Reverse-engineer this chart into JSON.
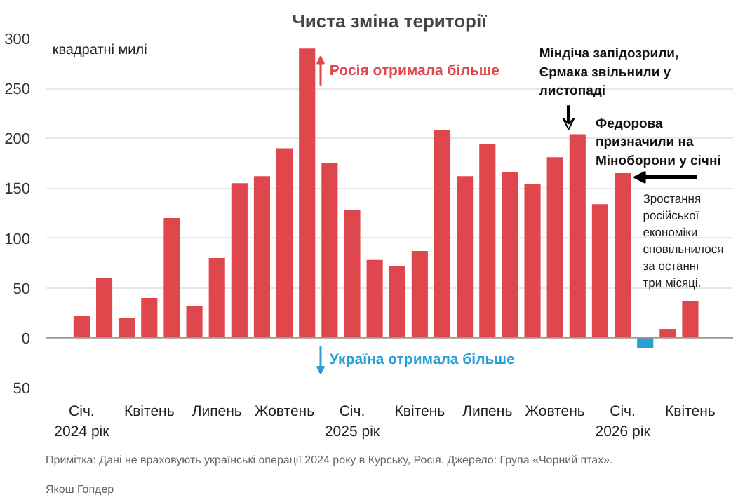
{
  "chart_data": {
    "type": "bar",
    "title": "Чиста зміна території",
    "ylabel": "квадратні милі",
    "categories": [
      "Січ.\n2024 рік",
      null,
      null,
      "Квітень",
      null,
      null,
      "Липень",
      null,
      null,
      "Жовтень",
      null,
      null,
      "Січ.\n2025 рік",
      null,
      null,
      "Квітень",
      null,
      null,
      "Липень",
      null,
      null,
      "Жовтень",
      null,
      null,
      "Січ.\n2026 рік",
      null,
      null,
      "Квітень"
    ],
    "values": [
      22,
      60,
      20,
      40,
      120,
      32,
      80,
      155,
      162,
      190,
      290,
      175,
      128,
      78,
      72,
      87,
      208,
      162,
      194,
      166,
      154,
      181,
      204,
      134,
      165,
      -10,
      9,
      37
    ],
    "colors": [
      "#e0474c",
      "#e0474c",
      "#e0474c",
      "#e0474c",
      "#e0474c",
      "#e0474c",
      "#e0474c",
      "#e0474c",
      "#e0474c",
      "#e0474c",
      "#e0474c",
      "#e0474c",
      "#e0474c",
      "#e0474c",
      "#e0474c",
      "#e0474c",
      "#e0474c",
      "#e0474c",
      "#e0474c",
      "#e0474c",
      "#e0474c",
      "#e0474c",
      "#e0474c",
      "#e0474c",
      "#e0474c",
      "#2a9fd6",
      "#e0474c",
      "#e0474c"
    ],
    "ylim": [
      -50,
      300
    ],
    "yticks": [
      {
        "value": -50,
        "label": "50"
      },
      0,
      50,
      100,
      150,
      200,
      250,
      300
    ],
    "grid": "y",
    "annotations": [
      "Росія отримала більше",
      "Україна отримала більше",
      "Міндіча запідозрили,\nЄрмака звільнили у\nлистопаді",
      "Федорова\nпризначили на\nМіноборони у січні",
      "Зростання\nросійської\nекономіки\nсповільнилося\nза останні\nтри місяці.",
      "Примітка: Дані не враховують українські операції 2024 року в Курську, Росія.  Джерело: Група «Чорний птах».",
      "Якош Гопдер"
    ]
  }
}
